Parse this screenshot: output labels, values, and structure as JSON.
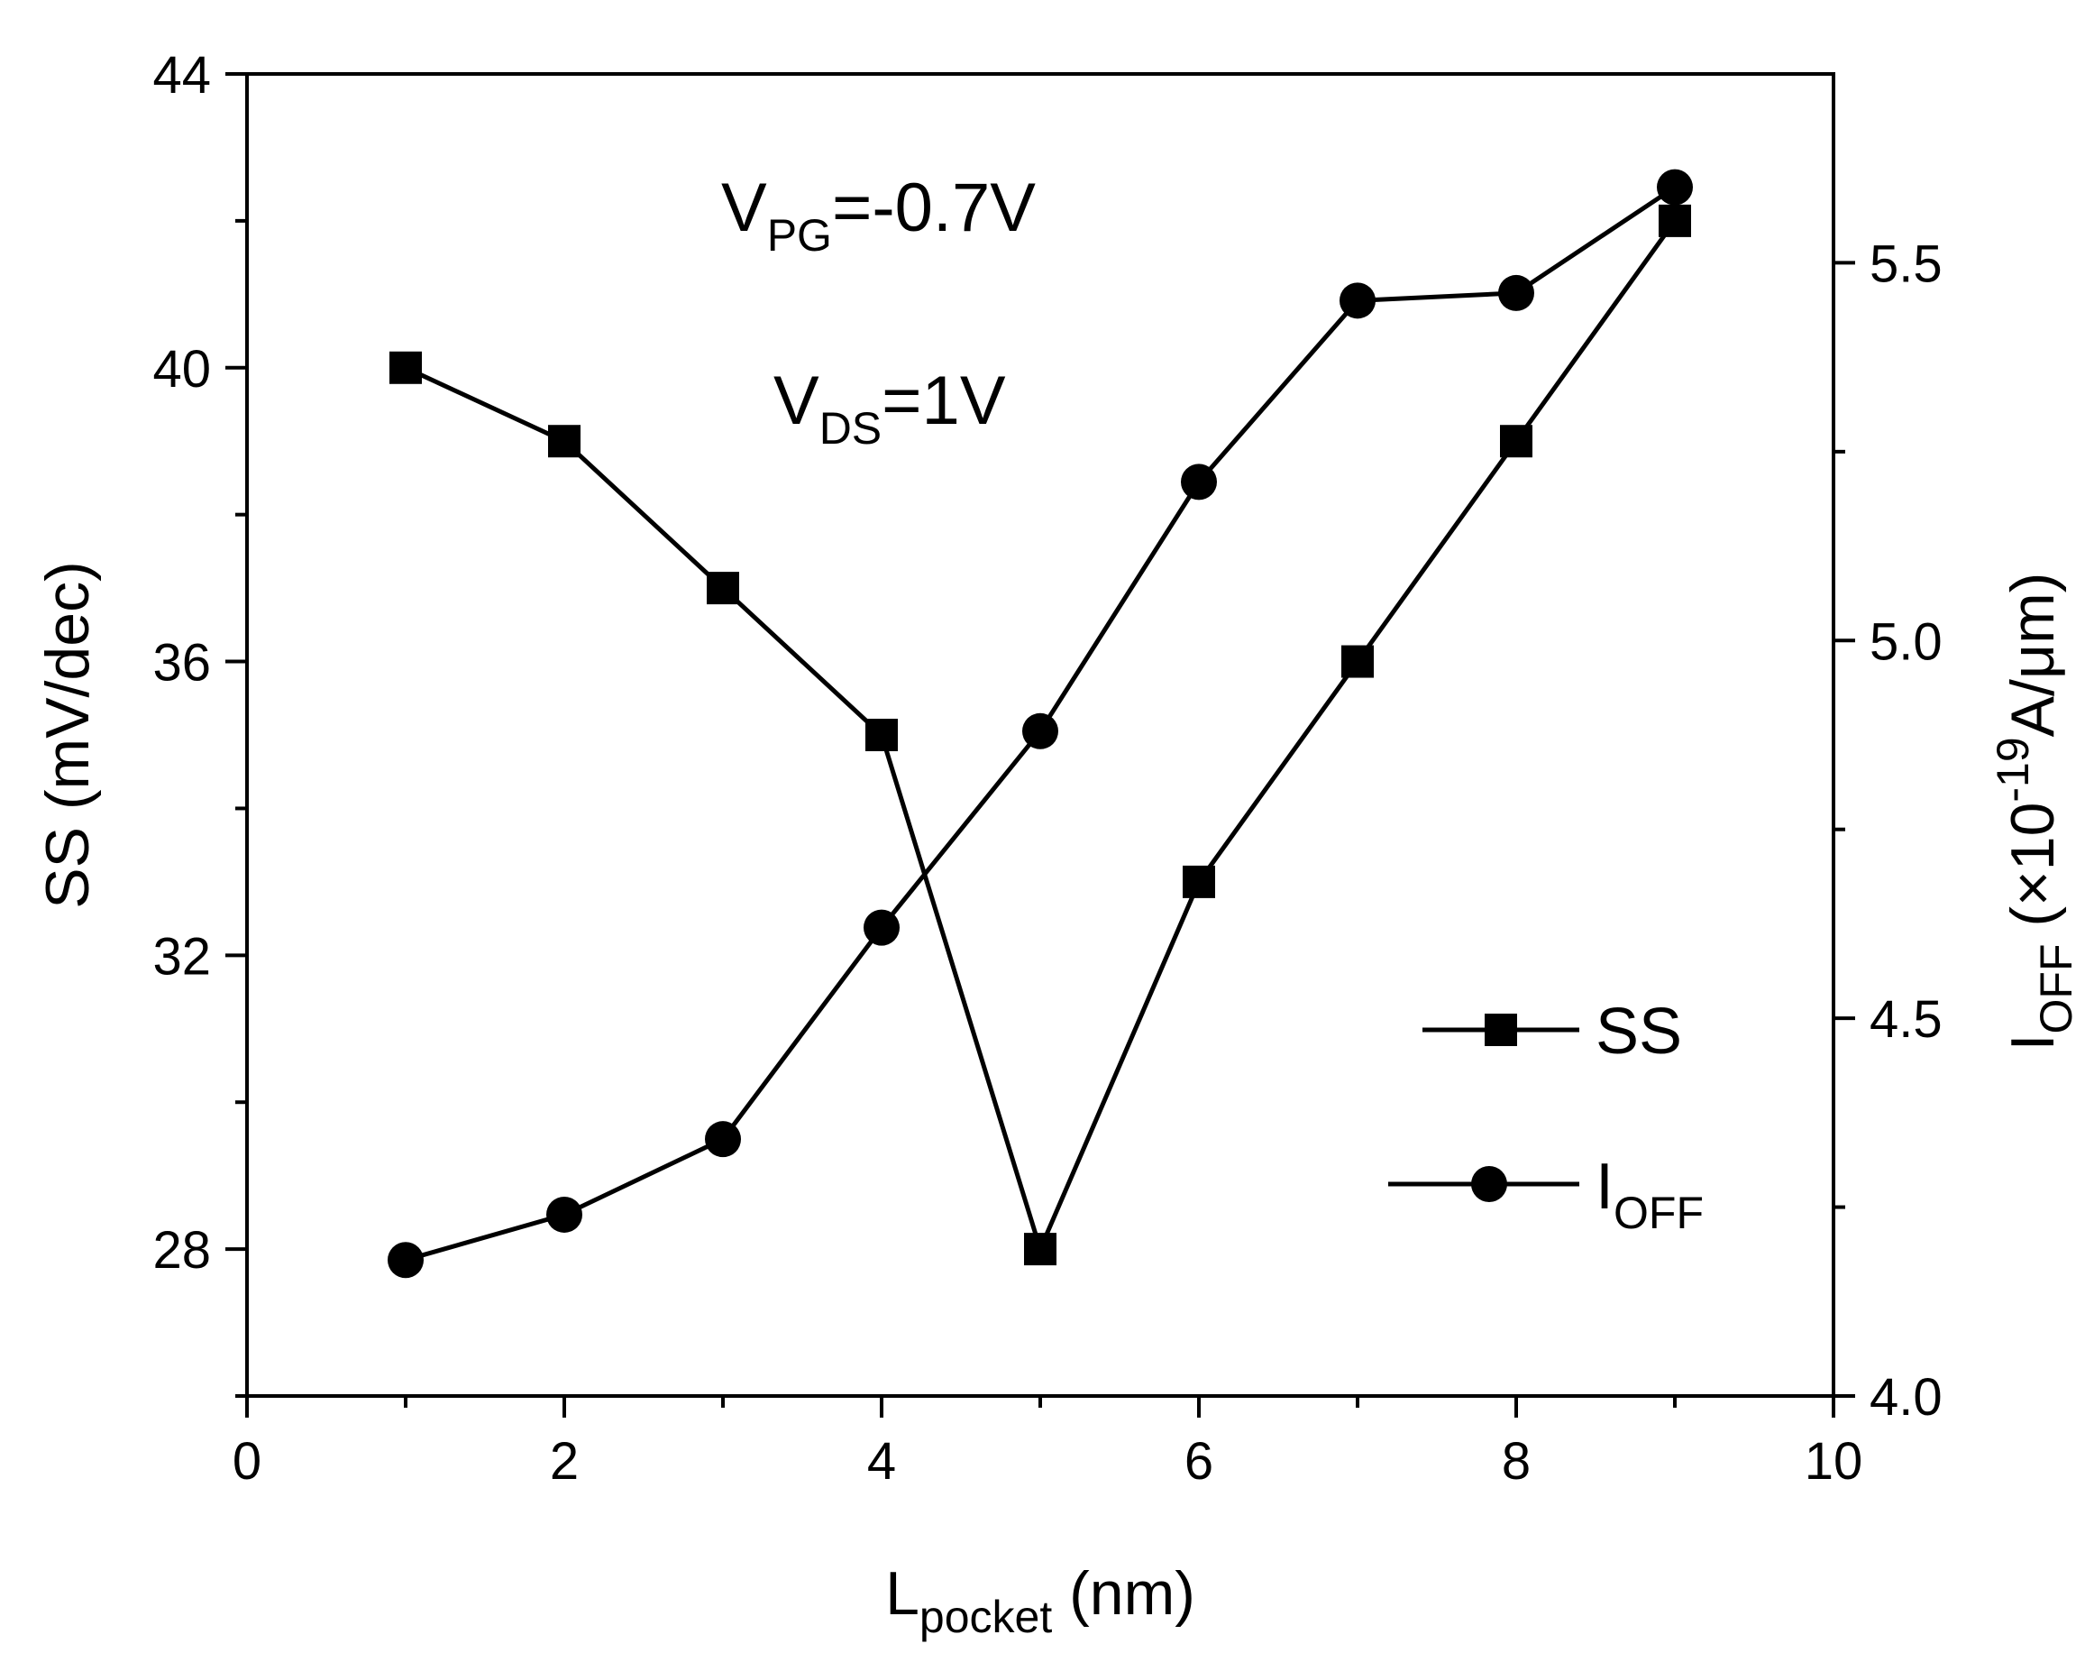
{
  "chart_data": {
    "type": "line",
    "x": [
      1,
      2,
      3,
      4,
      5,
      6,
      7,
      8,
      9
    ],
    "series": [
      {
        "name": "SS",
        "axis": "left",
        "marker": "square",
        "values": [
          40,
          39,
          37,
          35,
          28,
          33,
          36,
          39,
          42
        ]
      },
      {
        "name": "IOFF",
        "axis": "right",
        "marker": "circle",
        "values": [
          4.18,
          4.24,
          4.34,
          4.62,
          4.88,
          5.21,
          5.45,
          5.46,
          5.6
        ]
      }
    ],
    "xlim": [
      0,
      10
    ],
    "ylim_left": [
      26,
      44
    ],
    "ylim_right": [
      4.0,
      5.75
    ],
    "x_ticks": [
      "0",
      "2",
      "4",
      "6",
      "8",
      "10"
    ],
    "x_tick_values": [
      0,
      2,
      4,
      6,
      8,
      10
    ],
    "y_left_ticks": [
      "28",
      "32",
      "36",
      "40",
      "44"
    ],
    "y_left_tick_values": [
      28,
      32,
      36,
      40,
      44
    ],
    "y_right_ticks": [
      "4.0",
      "4.5",
      "5.0",
      "5.5"
    ],
    "y_right_tick_values": [
      4.0,
      4.5,
      5.0,
      5.5
    ],
    "xlabel": {
      "main": "L",
      "sub": "pocket",
      "rest": " (nm)"
    },
    "ylabel_left": "SS (mV/dec)",
    "ylabel_right": {
      "main": "I",
      "sub": "OFF",
      "pre": " (×10",
      "sup": "-19",
      "post": "A/μm)"
    },
    "annotations": [
      {
        "main": "V",
        "sub": "PG",
        "rest": "=-0.7V"
      },
      {
        "main": "V",
        "sub": "DS",
        "rest": "=1V"
      }
    ],
    "legend": {
      "position": "bottom-right",
      "entries": [
        {
          "main": "SS",
          "sub": ""
        },
        {
          "main": "I",
          "sub": "OFF"
        }
      ]
    },
    "grid": false
  }
}
